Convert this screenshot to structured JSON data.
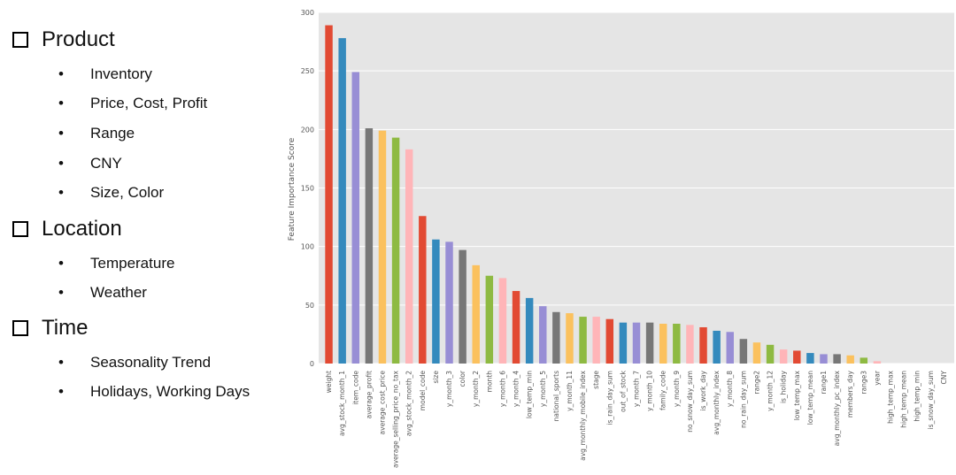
{
  "sections": [
    {
      "title": "Product",
      "items": [
        "Inventory",
        "Price, Cost, Profit",
        "Range",
        "CNY",
        "Size, Color"
      ]
    },
    {
      "title": "Location",
      "items": [
        "Temperature",
        "Weather"
      ]
    },
    {
      "title": "Time",
      "items": [
        "Seasonality Trend",
        "Holidays, Working Days"
      ]
    }
  ],
  "bullet": "•",
  "chart_data": {
    "type": "bar",
    "title": "",
    "xlabel": "",
    "ylabel": "Feature Importance Score",
    "ylim": [
      0,
      300
    ],
    "yticks": [
      0,
      50,
      100,
      150,
      200,
      250,
      300
    ],
    "grid": true,
    "categories": [
      "weight",
      "avg_stock_month_1",
      "item_code",
      "average_profit",
      "average_cost_price",
      "average_selling_price_no_tax",
      "avg_stock_month_2",
      "model_code",
      "size",
      "y_month_3",
      "color",
      "y_month_2",
      "month",
      "y_month_6",
      "y_month_4",
      "low_temp_min",
      "y_month_5",
      "national_sports",
      "y_month_11",
      "avg_monthly_mobile_index",
      "stage",
      "is_rain_day_sum",
      "out_of_stock",
      "y_month_7",
      "y_month_10",
      "family_code",
      "y_month_9",
      "no_snow_day_sum",
      "is_work_day",
      "avg_monthly_index",
      "y_month_8",
      "no_rain_day_sum",
      "range2",
      "y_month_12",
      "is_holiday",
      "low_temp_max",
      "low_temp_mean",
      "range1",
      "avg_monthly_pc_index",
      "members_day",
      "range3",
      "year",
      "high_temp_max",
      "high_temp_mean",
      "high_temp_min",
      "is_snow_day_sum",
      "CNY"
    ],
    "values": [
      289,
      278,
      249,
      201,
      199,
      193,
      183,
      126,
      106,
      104,
      97,
      84,
      75,
      73,
      62,
      56,
      49,
      44,
      43,
      40,
      40,
      38,
      35,
      35,
      35,
      34,
      34,
      33,
      31,
      28,
      27,
      21,
      18,
      16,
      12,
      11,
      9,
      8,
      8,
      7,
      5,
      2,
      0,
      0,
      0,
      0,
      0
    ],
    "colors": [
      "#e24a33",
      "#348abd",
      "#988ed5",
      "#777777",
      "#fbc15e",
      "#8eba42",
      "#ffb5b8"
    ]
  }
}
